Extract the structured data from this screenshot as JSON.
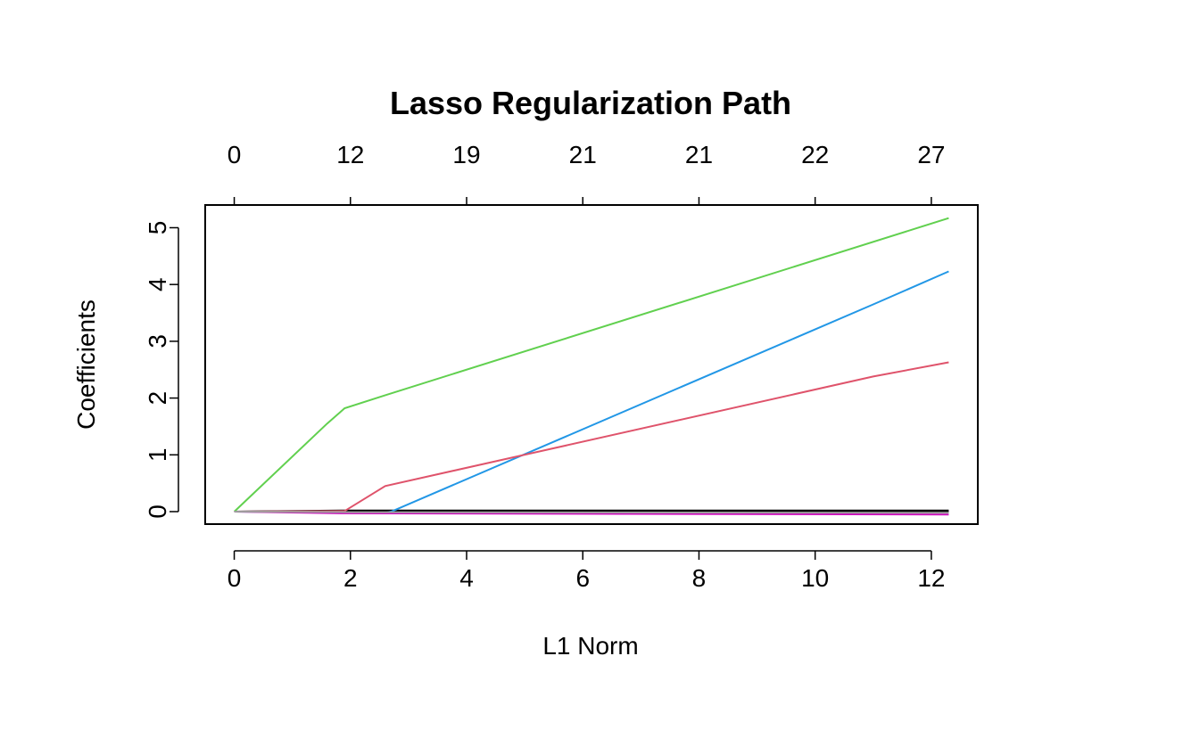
{
  "chart_data": {
    "type": "line",
    "title": "Lasso Regularization Path",
    "xlabel": "L1 Norm",
    "ylabel": "Coefficients",
    "xlim": [
      -0.5,
      12.8
    ],
    "ylim": [
      -0.22,
      5.4
    ],
    "x_ticks": [
      0,
      2,
      4,
      6,
      8,
      10,
      12
    ],
    "y_ticks": [
      0,
      1,
      2,
      3,
      4,
      5
    ],
    "top_axis": {
      "positions": [
        0,
        2,
        4,
        6,
        8,
        10,
        12
      ],
      "labels": [
        "0",
        "12",
        "19",
        "21",
        "21",
        "22",
        "27"
      ]
    },
    "grid": false,
    "legend": "none",
    "series": [
      {
        "color": "#000000",
        "x": [
          0,
          1.9,
          12.3
        ],
        "y": [
          0,
          0.02,
          0.02
        ]
      },
      {
        "color": "#000000",
        "x": [
          0,
          2.0,
          12.3
        ],
        "y": [
          0,
          0.01,
          0.0
        ]
      },
      {
        "color": "#61D04F",
        "x": [
          0,
          1.6,
          1.9,
          2.6,
          12.3
        ],
        "y": [
          0,
          1.55,
          1.82,
          2.05,
          5.17
        ]
      },
      {
        "color": "#2297E6",
        "x": [
          0,
          2.6,
          2.7,
          11.0,
          12.3
        ],
        "y": [
          0,
          -0.02,
          0.0,
          3.65,
          4.23
        ]
      },
      {
        "color": "#DF536B",
        "x": [
          0,
          1.9,
          2.6,
          11.0,
          12.3
        ],
        "y": [
          0,
          0.01,
          0.45,
          2.38,
          2.63
        ]
      },
      {
        "color": "#CD0BBC",
        "x": [
          0,
          1.9,
          12.3
        ],
        "y": [
          0,
          -0.03,
          -0.05
        ]
      },
      {
        "color": "#9E9E9E",
        "x": [
          0,
          2.0,
          12.3
        ],
        "y": [
          0,
          -0.01,
          -0.02
        ]
      }
    ]
  }
}
